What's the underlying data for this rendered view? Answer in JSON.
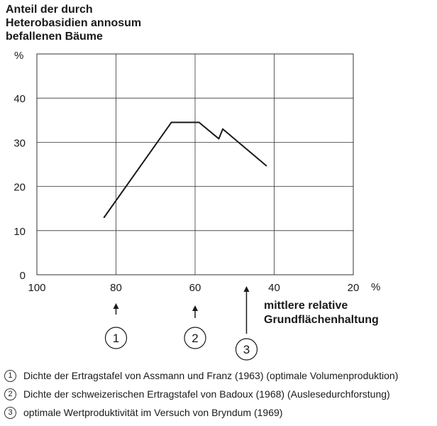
{
  "chart_data": {
    "type": "line",
    "title": "",
    "ylabel": "Anteil der durch\nHeterobasidien annosum\nbefallenen Bäume",
    "y_unit": "%",
    "xlabel": "mittlere relative\nGrundflächenhaltung",
    "x_unit": "%",
    "xlim": [
      100,
      20
    ],
    "ylim": [
      0,
      50
    ],
    "x_ticks": [
      100,
      80,
      60,
      40,
      20
    ],
    "y_ticks": [
      0,
      10,
      20,
      30,
      40
    ],
    "grid": true,
    "x": [
      83,
      66,
      59,
      54,
      53,
      42
    ],
    "values": [
      13,
      34.5,
      34.5,
      30.8,
      33,
      24.7
    ],
    "markers": [
      {
        "label": "1",
        "x": 80
      },
      {
        "label": "2",
        "x": 60
      },
      {
        "label": "3",
        "x": 47
      }
    ]
  },
  "legend": [
    {
      "num": "1",
      "text": "Dichte der Ertragstafel von Assmann und Franz (1963) (optimale Volumenproduktion)"
    },
    {
      "num": "2",
      "text": "Dichte der schweizerischen Ertragstafel von Badoux (1968) (Auslesedurchforstung)"
    },
    {
      "num": "3",
      "text": "optimale Wertproduktivität im Versuch von Bryndum (1969)"
    }
  ]
}
